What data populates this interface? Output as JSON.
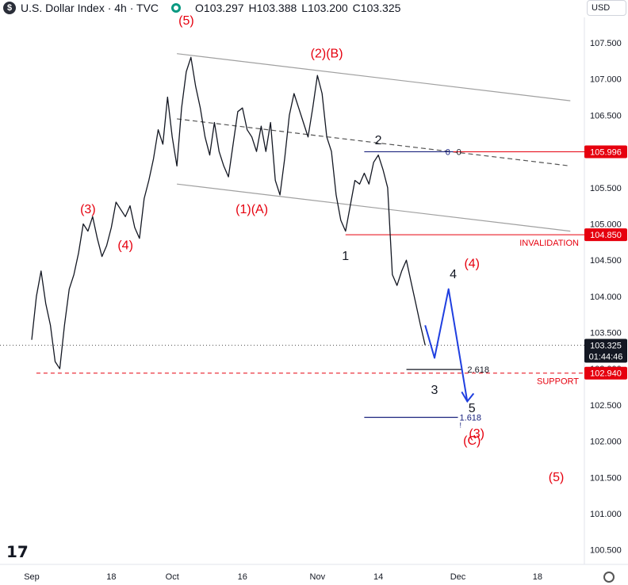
{
  "header": {
    "symbol": "U.S. Dollar Index · 4h · TVC",
    "o_label": "O",
    "o": "103.297",
    "h_label": "H",
    "h": "103.388",
    "l_label": "L",
    "l": "103.200",
    "c_label": "C",
    "c": "103.325",
    "currency": "USD",
    "status_color": "#089981"
  },
  "chart_data": {
    "type": "line",
    "title": "U.S. Dollar Index · 4h · TVC",
    "y_range": [
      100.3,
      107.85
    ],
    "x_range": [
      "2023-09-01",
      "2023-12-28"
    ],
    "y_ticks": [
      "107.500",
      "107.000",
      "106.500",
      "106.000",
      "105.500",
      "105.000",
      "104.500",
      "104.000",
      "103.500",
      "103.000",
      "102.500",
      "102.000",
      "101.500",
      "101.000",
      "100.500"
    ],
    "y_tick_values": [
      107.5,
      107.0,
      106.5,
      106.0,
      105.5,
      105.0,
      104.5,
      104.0,
      103.5,
      103.0,
      102.5,
      102.0,
      101.5,
      101.0,
      100.5
    ],
    "x_ticks": [
      {
        "label": "Sep",
        "date": "2023-09-01"
      },
      {
        "label": "18",
        "date": "2023-09-18"
      },
      {
        "label": "Oct",
        "date": "2023-10-01"
      },
      {
        "label": "16",
        "date": "2023-10-16"
      },
      {
        "label": "Nov",
        "date": "2023-11-01"
      },
      {
        "label": "14",
        "date": "2023-11-14"
      },
      {
        "label": "Dec",
        "date": "2023-12-01"
      },
      {
        "label": "18",
        "date": "2023-12-18"
      }
    ],
    "price_series": [
      [
        "2023-09-01",
        103.4
      ],
      [
        "2023-09-02",
        104.0
      ],
      [
        "2023-09-03",
        104.35
      ],
      [
        "2023-09-04",
        103.9
      ],
      [
        "2023-09-05",
        103.6
      ],
      [
        "2023-09-06",
        103.1
      ],
      [
        "2023-09-07",
        103.0
      ],
      [
        "2023-09-08",
        103.6
      ],
      [
        "2023-09-09",
        104.1
      ],
      [
        "2023-09-10",
        104.3
      ],
      [
        "2023-09-11",
        104.6
      ],
      [
        "2023-09-12",
        105.0
      ],
      [
        "2023-09-13",
        104.9
      ],
      [
        "2023-09-14",
        105.1
      ],
      [
        "2023-09-15",
        104.8
      ],
      [
        "2023-09-16",
        104.55
      ],
      [
        "2023-09-17",
        104.7
      ],
      [
        "2023-09-18",
        104.95
      ],
      [
        "2023-09-19",
        105.3
      ],
      [
        "2023-09-20",
        105.2
      ],
      [
        "2023-09-21",
        105.1
      ],
      [
        "2023-09-22",
        105.25
      ],
      [
        "2023-09-23",
        104.95
      ],
      [
        "2023-09-24",
        104.8
      ],
      [
        "2023-09-25",
        105.35
      ],
      [
        "2023-09-26",
        105.6
      ],
      [
        "2023-09-27",
        105.9
      ],
      [
        "2023-09-28",
        106.3
      ],
      [
        "2023-09-29",
        106.1
      ],
      [
        "2023-09-30",
        106.75
      ],
      [
        "2023-10-01",
        106.2
      ],
      [
        "2023-10-02",
        105.8
      ],
      [
        "2023-10-03",
        106.6
      ],
      [
        "2023-10-04",
        107.1
      ],
      [
        "2023-10-05",
        107.3
      ],
      [
        "2023-10-06",
        106.9
      ],
      [
        "2023-10-07",
        106.6
      ],
      [
        "2023-10-08",
        106.2
      ],
      [
        "2023-10-09",
        105.95
      ],
      [
        "2023-10-10",
        106.4
      ],
      [
        "2023-10-11",
        106.0
      ],
      [
        "2023-10-12",
        105.8
      ],
      [
        "2023-10-13",
        105.65
      ],
      [
        "2023-10-14",
        106.1
      ],
      [
        "2023-10-15",
        106.55
      ],
      [
        "2023-10-16",
        106.6
      ],
      [
        "2023-10-17",
        106.3
      ],
      [
        "2023-10-18",
        106.2
      ],
      [
        "2023-10-19",
        106.0
      ],
      [
        "2023-10-20",
        106.35
      ],
      [
        "2023-10-21",
        106.0
      ],
      [
        "2023-10-22",
        106.4
      ],
      [
        "2023-10-23",
        105.6
      ],
      [
        "2023-10-24",
        105.4
      ],
      [
        "2023-10-25",
        105.9
      ],
      [
        "2023-10-26",
        106.5
      ],
      [
        "2023-10-27",
        106.8
      ],
      [
        "2023-10-28",
        106.6
      ],
      [
        "2023-10-29",
        106.4
      ],
      [
        "2023-10-30",
        106.2
      ],
      [
        "2023-10-31",
        106.6
      ],
      [
        "2023-11-01",
        107.05
      ],
      [
        "2023-11-02",
        106.8
      ],
      [
        "2023-11-03",
        106.2
      ],
      [
        "2023-11-04",
        106.0
      ],
      [
        "2023-11-05",
        105.4
      ],
      [
        "2023-11-06",
        105.05
      ],
      [
        "2023-11-07",
        104.9
      ],
      [
        "2023-11-08",
        105.25
      ],
      [
        "2023-11-09",
        105.6
      ],
      [
        "2023-11-10",
        105.55
      ],
      [
        "2023-11-11",
        105.7
      ],
      [
        "2023-11-12",
        105.55
      ],
      [
        "2023-11-13",
        105.85
      ],
      [
        "2023-11-14",
        105.95
      ],
      [
        "2023-11-15",
        105.75
      ],
      [
        "2023-11-16",
        105.5
      ],
      [
        "2023-11-17",
        104.3
      ],
      [
        "2023-11-18",
        104.15
      ],
      [
        "2023-11-19",
        104.35
      ],
      [
        "2023-11-20",
        104.5
      ],
      [
        "2023-11-21",
        104.2
      ],
      [
        "2023-11-22",
        103.9
      ],
      [
        "2023-11-23",
        103.6
      ],
      [
        "2023-11-24",
        103.325
      ]
    ],
    "last_price": 103.325,
    "last_price_label": "103.325",
    "countdown_label": "01:44:46",
    "price_tags": [
      {
        "label": "105.996",
        "value": 105.996
      },
      {
        "label": "104.850",
        "value": 104.85
      },
      {
        "label": "102.940",
        "value": 102.94
      }
    ],
    "text_labels": {
      "invalidation": "INVALIDATION",
      "support": "SUPPORT",
      "fib_upper": "2.618",
      "fib_lower": "1.618",
      "fib_zero_blue": "0",
      "fib_zero_dark": "0",
      "fib_marker": "!"
    },
    "red_wave_labels": [
      {
        "text": "(5)",
        "date": "2023-10-04",
        "y": 107.75
      },
      {
        "text": "(3)",
        "date": "2023-09-13",
        "y": 105.15
      },
      {
        "text": "(4)",
        "date": "2023-09-21",
        "y": 104.65
      },
      {
        "text": "(1)(A)",
        "date": "2023-10-18",
        "y": 105.15
      },
      {
        "text": "(2)(B)",
        "date": "2023-11-03",
        "y": 107.3
      },
      {
        "text": "(4)",
        "date": "2023-12-04",
        "y": 104.4
      },
      {
        "text": "(3)",
        "date": "2023-12-05",
        "y": 102.05
      },
      {
        "text": "(C)",
        "date": "2023-12-04",
        "y": 101.95
      },
      {
        "text": "(5)",
        "date": "2023-12-22",
        "y": 101.45
      }
    ],
    "black_wave_labels": [
      {
        "text": "1",
        "date": "2023-11-07",
        "y": 104.5
      },
      {
        "text": "2",
        "date": "2023-11-14",
        "y": 106.1
      },
      {
        "text": "3",
        "date": "2023-11-26",
        "y": 102.65
      },
      {
        "text": "4",
        "date": "2023-11-30",
        "y": 104.25
      },
      {
        "text": "5",
        "date": "2023-12-04",
        "y": 102.4
      }
    ],
    "projection_path": [
      [
        "2023-11-24",
        103.6
      ],
      [
        "2023-11-26",
        103.15
      ],
      [
        "2023-11-29",
        104.1
      ],
      [
        "2023-12-03",
        102.55
      ]
    ],
    "channel_upper": [
      [
        "2023-10-02",
        107.35
      ],
      [
        "2023-12-25",
        106.7
      ]
    ],
    "channel_lower": [
      [
        "2023-10-02",
        105.55
      ],
      [
        "2023-12-25",
        104.9
      ]
    ],
    "channel_mid_dashed": [
      [
        "2023-10-02",
        106.45
      ],
      [
        "2023-12-25",
        105.8
      ]
    ],
    "red_level_lines": [
      {
        "value": 105.996,
        "from": "2023-11-13",
        "style": "solid"
      },
      {
        "value": 104.85,
        "from": "2023-11-07",
        "style": "solid"
      },
      {
        "value": 102.94,
        "from": "2023-09-02",
        "style": "dashed"
      }
    ],
    "fib_lines": [
      {
        "value": 105.996,
        "from": "2023-11-11",
        "to": "2023-11-30",
        "color": "#1a237e"
      },
      {
        "value": 102.99,
        "from": "2023-11-20",
        "to": "2023-12-02",
        "color": "#131722"
      },
      {
        "value": 102.33,
        "from": "2023-11-11",
        "to": "2023-12-01",
        "color": "#1a237e"
      }
    ],
    "colors": {
      "price": "#131722",
      "wave_red": "#e6000e",
      "projection": "#1f3fe0",
      "channel": "#a0a0a0",
      "level_red": "#e6000e",
      "tag_red": "#e6000e",
      "tag_last": "#131722"
    }
  }
}
